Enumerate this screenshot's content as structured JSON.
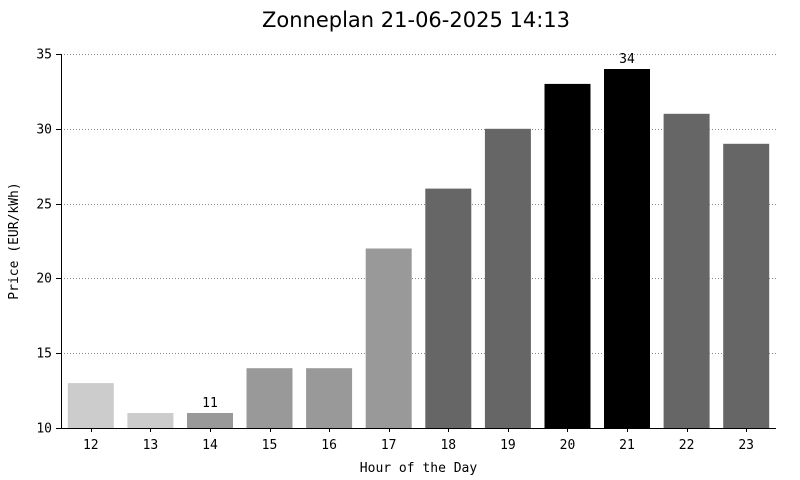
{
  "chart_data": {
    "type": "bar",
    "title": "Zonneplan 21-06-2025 14:13",
    "xlabel": "Hour of the Day",
    "ylabel": "Price (EUR/kWh)",
    "ylim": [
      10,
      35
    ],
    "yticks": [
      10,
      15,
      20,
      25,
      30,
      35
    ],
    "grid": true,
    "categories": [
      "12",
      "13",
      "14",
      "15",
      "16",
      "17",
      "18",
      "19",
      "20",
      "21",
      "22",
      "23"
    ],
    "values": [
      13,
      11,
      11,
      14,
      14,
      22,
      26,
      30,
      33,
      34,
      31,
      29
    ],
    "colors": [
      "#cccccc",
      "#cccccc",
      "#999999",
      "#999999",
      "#999999",
      "#999999",
      "#666666",
      "#666666",
      "#000000",
      "#000000",
      "#666666",
      "#666666"
    ],
    "annotations": [
      {
        "category": "14",
        "text": "11"
      },
      {
        "category": "21",
        "text": "34"
      }
    ]
  }
}
